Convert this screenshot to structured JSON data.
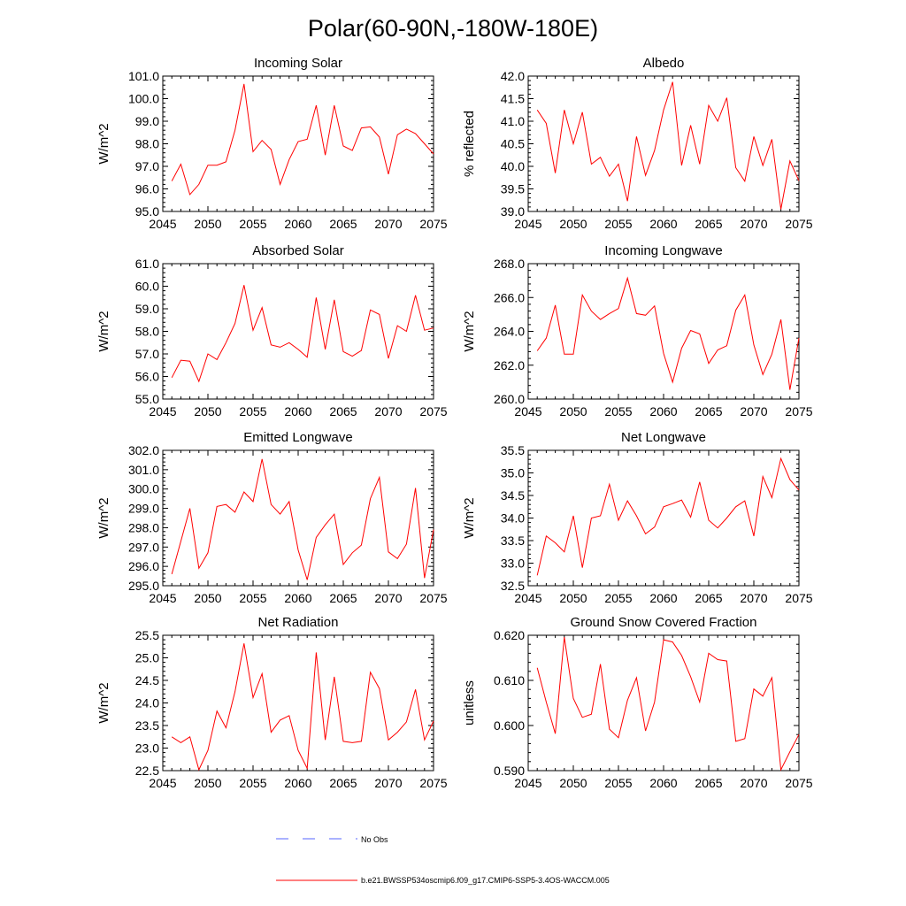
{
  "title": "Polar(60-90N,-180W-180E)",
  "colors": {
    "series": "#ff0000",
    "obs": "#5566ff",
    "axis": "#000000"
  },
  "legend": [
    {
      "label": "No Obs",
      "style": "dashed",
      "color": "#5566ff"
    },
    {
      "label": "b.e21.BWSSP534oscmip6.f09_g17.CMIP6-SSP5-3.4OS-WACCM.005",
      "style": "solid",
      "color": "#ff0000"
    }
  ],
  "chart_data": [
    {
      "type": "line",
      "title": "Incoming Solar",
      "ylabel": "W/m^2",
      "xlim": [
        2045,
        2075
      ],
      "ylim": [
        95.0,
        101.0
      ],
      "xticks": [
        2045,
        2050,
        2055,
        2060,
        2065,
        2070,
        2075
      ],
      "yticks": [
        "95.0",
        "96.0",
        "97.0",
        "98.0",
        "99.0",
        "100.0",
        "101.0"
      ],
      "series": [
        {
          "name": "b.e21.BWSSP534oscmip6.f09_g17.CMIP6-SSP5-3.4OS-WACCM.005",
          "x": [
            2046,
            2047,
            2048,
            2049,
            2050,
            2051,
            2052,
            2053,
            2054,
            2055,
            2056,
            2057,
            2058,
            2059,
            2060,
            2061,
            2062,
            2063,
            2064,
            2065,
            2066,
            2067,
            2068,
            2069,
            2070,
            2071,
            2072,
            2073,
            2074,
            2075
          ],
          "values": [
            96.35,
            97.1,
            95.75,
            96.2,
            97.05,
            97.05,
            97.2,
            98.6,
            100.65,
            97.65,
            98.15,
            97.75,
            96.2,
            97.3,
            98.1,
            98.2,
            99.7,
            97.5,
            99.7,
            97.9,
            97.7,
            98.7,
            98.75,
            98.3,
            96.65,
            98.4,
            98.65,
            98.45,
            98.0,
            97.55
          ]
        }
      ]
    },
    {
      "type": "line",
      "title": "Albedo",
      "ylabel": "% reflected",
      "xlim": [
        2045,
        2075
      ],
      "ylim": [
        39.0,
        42.0
      ],
      "xticks": [
        2045,
        2050,
        2055,
        2060,
        2065,
        2070,
        2075
      ],
      "yticks": [
        "39.0",
        "39.5",
        "40.0",
        "40.5",
        "41.0",
        "41.5",
        "42.0"
      ],
      "series": [
        {
          "name": "b.e21.BWSSP534oscmip6.f09_g17.CMIP6-SSP5-3.4OS-WACCM.005",
          "x": [
            2046,
            2047,
            2048,
            2049,
            2050,
            2051,
            2052,
            2053,
            2054,
            2055,
            2056,
            2057,
            2058,
            2059,
            2060,
            2061,
            2062,
            2063,
            2064,
            2065,
            2066,
            2067,
            2068,
            2069,
            2070,
            2071,
            2072,
            2073,
            2074,
            2075
          ],
          "values": [
            41.25,
            40.95,
            39.85,
            41.25,
            40.5,
            41.2,
            40.05,
            40.2,
            39.78,
            40.05,
            39.23,
            40.66,
            39.8,
            40.35,
            41.25,
            41.87,
            40.02,
            40.91,
            40.05,
            41.35,
            41.0,
            41.52,
            39.97,
            39.67,
            40.66,
            40.02,
            40.6,
            39.05,
            40.12,
            39.68
          ]
        }
      ]
    },
    {
      "type": "line",
      "title": "Absorbed Solar",
      "ylabel": "W/m^2",
      "xlim": [
        2045,
        2075
      ],
      "ylim": [
        55.0,
        61.0
      ],
      "xticks": [
        2045,
        2050,
        2055,
        2060,
        2065,
        2070,
        2075
      ],
      "yticks": [
        "55.0",
        "56.0",
        "57.0",
        "58.0",
        "59.0",
        "60.0",
        "61.0"
      ],
      "series": [
        {
          "name": "b.e21.BWSSP534oscmip6.f09_g17.CMIP6-SSP5-3.4OS-WACCM.005",
          "x": [
            2046,
            2047,
            2048,
            2049,
            2050,
            2051,
            2052,
            2053,
            2054,
            2055,
            2056,
            2057,
            2058,
            2059,
            2060,
            2061,
            2062,
            2063,
            2064,
            2065,
            2066,
            2067,
            2068,
            2069,
            2070,
            2071,
            2072,
            2073,
            2074,
            2075
          ],
          "values": [
            55.95,
            56.72,
            56.68,
            55.78,
            57.0,
            56.75,
            57.5,
            58.35,
            60.05,
            58.05,
            59.05,
            57.4,
            57.3,
            57.5,
            57.2,
            56.85,
            59.5,
            57.2,
            59.4,
            57.1,
            56.9,
            57.15,
            58.95,
            58.75,
            56.8,
            58.25,
            58.0,
            59.6,
            58.05,
            58.15
          ]
        }
      ]
    },
    {
      "type": "line",
      "title": "Incoming Longwave",
      "ylabel": "W/m^2",
      "xlim": [
        2045,
        2075
      ],
      "ylim": [
        260.0,
        268.0
      ],
      "xticks": [
        2045,
        2050,
        2055,
        2060,
        2065,
        2070,
        2075
      ],
      "yticks": [
        "260.0",
        "262.0",
        "264.0",
        "266.0",
        "268.0"
      ],
      "series": [
        {
          "name": "b.e21.BWSSP534oscmip6.f09_g17.CMIP6-SSP5-3.4OS-WACCM.005",
          "x": [
            2046,
            2047,
            2048,
            2049,
            2050,
            2051,
            2052,
            2053,
            2054,
            2055,
            2056,
            2057,
            2058,
            2059,
            2060,
            2061,
            2062,
            2063,
            2064,
            2065,
            2066,
            2067,
            2068,
            2069,
            2070,
            2071,
            2072,
            2073,
            2074,
            2075
          ],
          "values": [
            262.85,
            263.6,
            265.55,
            262.65,
            262.65,
            266.15,
            265.2,
            264.7,
            265.05,
            265.35,
            267.15,
            265.05,
            264.95,
            265.5,
            262.7,
            261.0,
            263.0,
            264.05,
            263.85,
            262.1,
            262.9,
            263.15,
            265.25,
            266.15,
            263.2,
            261.45,
            262.65,
            264.7,
            260.55,
            263.6
          ]
        }
      ]
    },
    {
      "type": "line",
      "title": "Emitted Longwave",
      "ylabel": "W/m^2",
      "xlim": [
        2045,
        2075
      ],
      "ylim": [
        295.0,
        302.0
      ],
      "xticks": [
        2045,
        2050,
        2055,
        2060,
        2065,
        2070,
        2075
      ],
      "yticks": [
        "295.0",
        "296.0",
        "297.0",
        "298.0",
        "299.0",
        "300.0",
        "301.0",
        "302.0"
      ],
      "series": [
        {
          "name": "b.e21.BWSSP534oscmip6.f09_g17.CMIP6-SSP5-3.4OS-WACCM.005",
          "x": [
            2046,
            2047,
            2048,
            2049,
            2050,
            2051,
            2052,
            2053,
            2054,
            2055,
            2056,
            2057,
            2058,
            2059,
            2060,
            2061,
            2062,
            2063,
            2064,
            2065,
            2066,
            2067,
            2068,
            2069,
            2070,
            2071,
            2072,
            2073,
            2074,
            2075
          ],
          "values": [
            295.6,
            297.3,
            299.0,
            295.9,
            296.7,
            299.1,
            299.2,
            298.8,
            299.85,
            299.35,
            301.55,
            299.2,
            298.7,
            299.35,
            296.85,
            295.3,
            297.5,
            298.15,
            298.7,
            296.1,
            296.7,
            297.1,
            299.5,
            300.6,
            296.75,
            296.4,
            297.15,
            300.05,
            295.4,
            297.9
          ]
        }
      ]
    },
    {
      "type": "line",
      "title": "Net Longwave",
      "ylabel": "W/m^2",
      "xlim": [
        2045,
        2075
      ],
      "ylim": [
        32.5,
        35.5
      ],
      "xticks": [
        2045,
        2050,
        2055,
        2060,
        2065,
        2070,
        2075
      ],
      "yticks": [
        "32.5",
        "33.0",
        "33.5",
        "34.0",
        "34.5",
        "35.0",
        "35.5"
      ],
      "series": [
        {
          "name": "b.e21.BWSSP534oscmip6.f09_g17.CMIP6-SSP5-3.4OS-WACCM.005",
          "x": [
            2046,
            2047,
            2048,
            2049,
            2050,
            2051,
            2052,
            2053,
            2054,
            2055,
            2056,
            2057,
            2058,
            2059,
            2060,
            2061,
            2062,
            2063,
            2064,
            2065,
            2066,
            2067,
            2068,
            2069,
            2070,
            2071,
            2072,
            2073,
            2074,
            2075
          ],
          "values": [
            32.73,
            33.6,
            33.45,
            33.25,
            34.05,
            32.9,
            34.0,
            34.05,
            34.75,
            33.95,
            34.38,
            34.05,
            33.65,
            33.8,
            34.25,
            34.32,
            34.4,
            34.02,
            34.8,
            33.95,
            33.78,
            34.0,
            34.25,
            34.38,
            33.6,
            34.92,
            34.45,
            35.32,
            34.85,
            34.62
          ]
        }
      ]
    },
    {
      "type": "line",
      "title": "Net Radiation",
      "ylabel": "W/m^2",
      "xlim": [
        2045,
        2075
      ],
      "ylim": [
        22.5,
        25.5
      ],
      "xticks": [
        2045,
        2050,
        2055,
        2060,
        2065,
        2070,
        2075
      ],
      "yticks": [
        "22.5",
        "23.0",
        "23.5",
        "24.0",
        "24.5",
        "25.0",
        "25.5"
      ],
      "series": [
        {
          "name": "b.e21.BWSSP534oscmip6.f09_g17.CMIP6-SSP5-3.4OS-WACCM.005",
          "x": [
            2046,
            2047,
            2048,
            2049,
            2050,
            2051,
            2052,
            2053,
            2054,
            2055,
            2056,
            2057,
            2058,
            2059,
            2060,
            2061,
            2062,
            2063,
            2064,
            2065,
            2066,
            2067,
            2068,
            2069,
            2070,
            2071,
            2072,
            2073,
            2074,
            2075
          ],
          "values": [
            23.25,
            23.12,
            23.25,
            22.52,
            22.95,
            23.82,
            23.45,
            24.25,
            25.32,
            24.12,
            24.65,
            23.35,
            23.62,
            23.72,
            22.95,
            22.55,
            25.12,
            23.18,
            24.58,
            23.15,
            23.12,
            23.15,
            24.68,
            24.32,
            23.18,
            23.35,
            23.58,
            24.3,
            23.18,
            23.6
          ]
        }
      ]
    },
    {
      "type": "line",
      "title": "Ground Snow Covered Fraction",
      "ylabel": "unitless",
      "xlim": [
        2045,
        2075
      ],
      "ylim": [
        0.59,
        0.62
      ],
      "xticks": [
        2045,
        2050,
        2055,
        2060,
        2065,
        2070,
        2075
      ],
      "yticks": [
        "0.590",
        "0.600",
        "0.610",
        "0.620"
      ],
      "series": [
        {
          "name": "b.e21.BWSSP534oscmip6.f09_g17.CMIP6-SSP5-3.4OS-WACCM.005",
          "x": [
            2046,
            2047,
            2048,
            2049,
            2050,
            2051,
            2052,
            2053,
            2054,
            2055,
            2056,
            2057,
            2058,
            2059,
            2060,
            2061,
            2062,
            2063,
            2064,
            2065,
            2066,
            2067,
            2068,
            2069,
            2070,
            2071,
            2072,
            2073,
            2074,
            2075
          ],
          "values": [
            0.6128,
            0.6052,
            0.5982,
            0.6196,
            0.606,
            0.6018,
            0.6025,
            0.6136,
            0.5992,
            0.5973,
            0.6056,
            0.6106,
            0.5988,
            0.6052,
            0.619,
            0.6185,
            0.6155,
            0.6108,
            0.6052,
            0.616,
            0.6146,
            0.6143,
            0.5965,
            0.5971,
            0.6081,
            0.6065,
            0.6106,
            0.5902,
            0.5942,
            0.598
          ]
        }
      ]
    }
  ]
}
